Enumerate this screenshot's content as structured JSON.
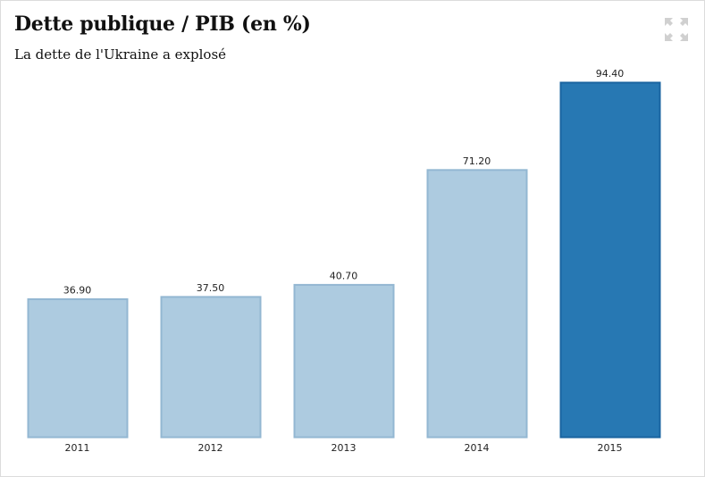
{
  "header": {
    "title": "Dette publique / PIB (en %)",
    "subtitle": "La dette de l'Ukraine a explosé",
    "expand_icon": "expand-icon"
  },
  "chart_data": {
    "type": "bar",
    "title": "Dette publique / PIB (en %)",
    "subtitle": "La dette de l'Ukraine a explosé",
    "categories": [
      "2011",
      "2012",
      "2013",
      "2014",
      "2015"
    ],
    "values": [
      36.9,
      37.5,
      40.7,
      71.2,
      94.4
    ],
    "value_labels": [
      "36.90",
      "37.50",
      "40.70",
      "71.20",
      "94.40"
    ],
    "highlight_index": 4,
    "colors": {
      "normal": "#adcbe0",
      "normal_border": "#93b7d2",
      "highlight": "#2778b3",
      "highlight_border": "#1a64a0"
    },
    "xlabel": "",
    "ylabel": "",
    "ylim": [
      0,
      94.4
    ],
    "grid": false
  }
}
